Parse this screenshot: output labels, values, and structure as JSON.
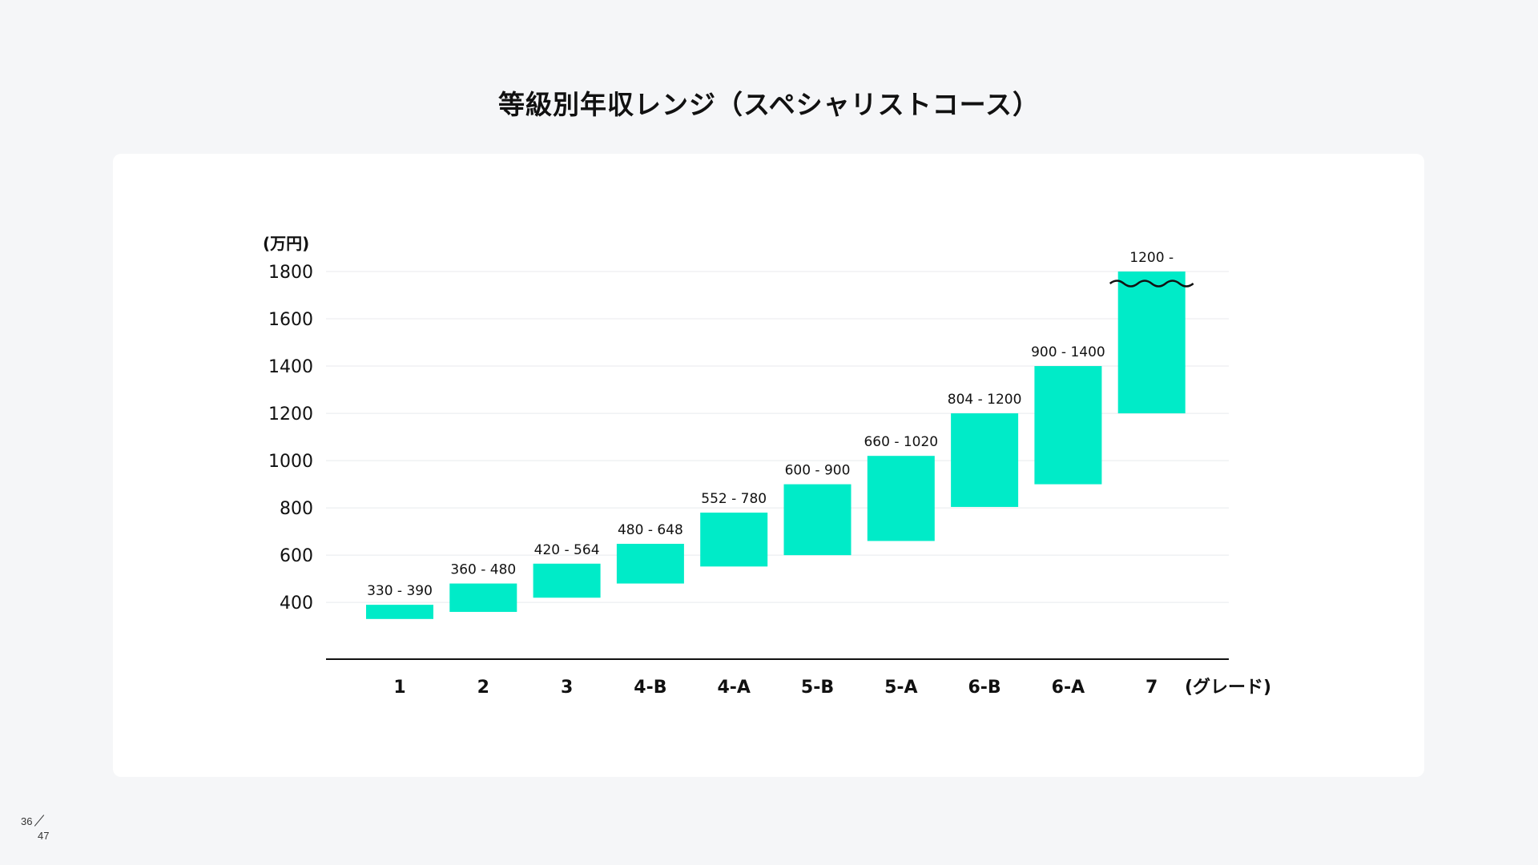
{
  "title": "等級別年収レンジ（スペシャリストコース）",
  "page": {
    "current": "36",
    "total": "47"
  },
  "colors": {
    "bar": "#00ebc8",
    "grid": "#e8eaed",
    "axis": "#111111",
    "text": "#111111"
  },
  "chart_data": {
    "type": "bar",
    "subtype": "floating-range",
    "title": "",
    "ylabel": "(万円)",
    "xlabel": "(グレード)",
    "ylim": [
      160,
      1800
    ],
    "yticks": [
      400,
      600,
      800,
      1000,
      1200,
      1400,
      1600,
      1800
    ],
    "grid": true,
    "legend": "none",
    "categories": [
      "1",
      "2",
      "3",
      "4-B",
      "4-A",
      "5-B",
      "5-A",
      "6-B",
      "6-A",
      "7"
    ],
    "ranges": [
      {
        "low": 330,
        "high": 390,
        "label": "330 - 390"
      },
      {
        "low": 360,
        "high": 480,
        "label": "360 - 480"
      },
      {
        "low": 420,
        "high": 564,
        "label": "420 - 564"
      },
      {
        "low": 480,
        "high": 648,
        "label": "480 - 648"
      },
      {
        "low": 552,
        "high": 780,
        "label": "552 - 780"
      },
      {
        "low": 600,
        "high": 900,
        "label": "600 - 900"
      },
      {
        "low": 660,
        "high": 1020,
        "label": "660 - 1020"
      },
      {
        "low": 804,
        "high": 1200,
        "label": "804 - 1200"
      },
      {
        "low": 900,
        "high": 1400,
        "label": "900 - 1400"
      },
      {
        "low": 1200,
        "high": null,
        "label": "1200 -"
      }
    ],
    "annotations": [
      "axis break marker above the open-ended top of grade 7"
    ]
  }
}
